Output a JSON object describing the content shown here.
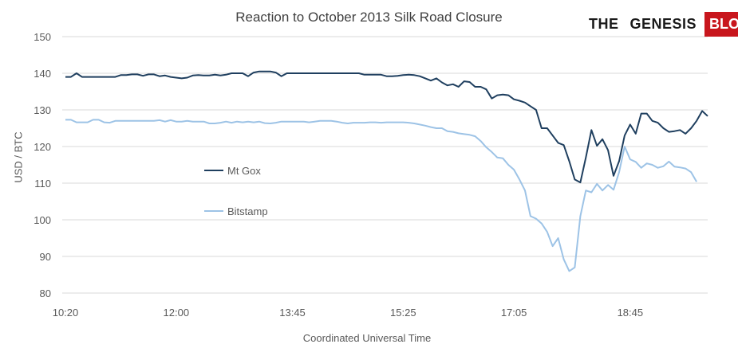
{
  "header": {
    "title": "Reaction to October 2013 Silk Road Closure"
  },
  "logo": {
    "part1": "THE",
    "part2": "GENESIS",
    "part3": "BLOCK",
    "accent_color": "#c8161d"
  },
  "chart_data": {
    "type": "line",
    "title": "Reaction to October 2013 Silk Road Closure",
    "xlabel": "Coordinated Universal Time",
    "ylabel": "USD / BTC",
    "ylim": [
      80,
      150
    ],
    "yticks": [
      80,
      90,
      100,
      110,
      120,
      130,
      140,
      150
    ],
    "xticks": [
      {
        "label": "10:20",
        "index": 0
      },
      {
        "label": "12:00",
        "index": 20
      },
      {
        "label": "13:45",
        "index": 41
      },
      {
        "label": "15:25",
        "index": 61
      },
      {
        "label": "17:05",
        "index": 81
      },
      {
        "label": "18:45",
        "index": 102
      }
    ],
    "grid": true,
    "legend_position": "inside-left",
    "series": [
      {
        "name": "Mt Gox",
        "color": "#1f3f5f",
        "values": [
          139.0,
          139.0,
          140.0,
          139.0,
          139.0,
          139.0,
          139.0,
          139.0,
          139.0,
          139.0,
          139.5,
          139.5,
          139.7,
          139.7,
          139.3,
          139.7,
          139.7,
          139.2,
          139.4,
          139.0,
          138.8,
          138.6,
          138.8,
          139.4,
          139.5,
          139.4,
          139.4,
          139.6,
          139.4,
          139.6,
          140.0,
          140.0,
          140.0,
          139.2,
          140.2,
          140.5,
          140.5,
          140.5,
          140.2,
          139.2,
          140.0,
          140.0,
          140.0,
          140.0,
          140.0,
          140.0,
          140.0,
          140.0,
          140.0,
          140.0,
          140.0,
          140.0,
          140.0,
          140.0,
          139.6,
          139.6,
          139.6,
          139.6,
          139.2,
          139.2,
          139.3,
          139.5,
          139.6,
          139.5,
          139.2,
          138.6,
          138.0,
          138.6,
          137.5,
          136.7,
          137.0,
          136.3,
          137.8,
          137.6,
          136.3,
          136.3,
          135.6,
          133.1,
          134.0,
          134.2,
          134.0,
          132.9,
          132.5,
          132.0,
          131.0,
          130.0,
          125.0,
          125.0,
          123.0,
          121.0,
          120.4,
          116.0,
          111.0,
          110.2,
          117.0,
          124.5,
          120.2,
          122.0,
          119.0,
          112.0,
          116.0,
          123.0,
          126.0,
          123.5,
          129.0,
          129.0,
          127.0,
          126.5,
          125.0,
          124.0,
          124.2,
          124.5,
          123.5,
          125.0,
          127.0,
          129.7,
          128.3
        ]
      },
      {
        "name": "Bitstamp",
        "color": "#9dc3e6",
        "values": [
          127.3,
          127.3,
          126.6,
          126.6,
          126.6,
          127.3,
          127.3,
          126.6,
          126.5,
          127.0,
          127.0,
          127.0,
          127.0,
          127.0,
          127.0,
          127.0,
          127.0,
          127.2,
          126.8,
          127.2,
          126.8,
          126.8,
          127.0,
          126.8,
          126.8,
          126.8,
          126.3,
          126.3,
          126.5,
          126.8,
          126.5,
          126.8,
          126.6,
          126.8,
          126.6,
          126.8,
          126.4,
          126.3,
          126.5,
          126.8,
          126.8,
          126.8,
          126.8,
          126.8,
          126.6,
          126.8,
          127.0,
          127.0,
          127.0,
          126.8,
          126.5,
          126.3,
          126.5,
          126.5,
          126.5,
          126.6,
          126.6,
          126.5,
          126.6,
          126.6,
          126.6,
          126.6,
          126.5,
          126.3,
          126.0,
          125.7,
          125.3,
          125.0,
          125.0,
          124.2,
          124.0,
          123.6,
          123.4,
          123.2,
          122.8,
          121.5,
          119.8,
          118.5,
          117.0,
          116.8,
          115.0,
          113.7,
          111.0,
          108.0,
          101.0,
          100.3,
          99.0,
          96.7,
          92.8,
          95.0,
          89.2,
          86.0,
          87.0,
          101.0,
          108.0,
          107.5,
          109.8,
          108.0,
          109.5,
          108.2,
          113.0,
          120.0,
          116.5,
          115.8,
          114.2,
          115.4,
          115.0,
          114.2,
          114.6,
          115.9,
          114.5,
          114.3,
          114.0,
          113.0,
          110.4
        ]
      }
    ]
  }
}
